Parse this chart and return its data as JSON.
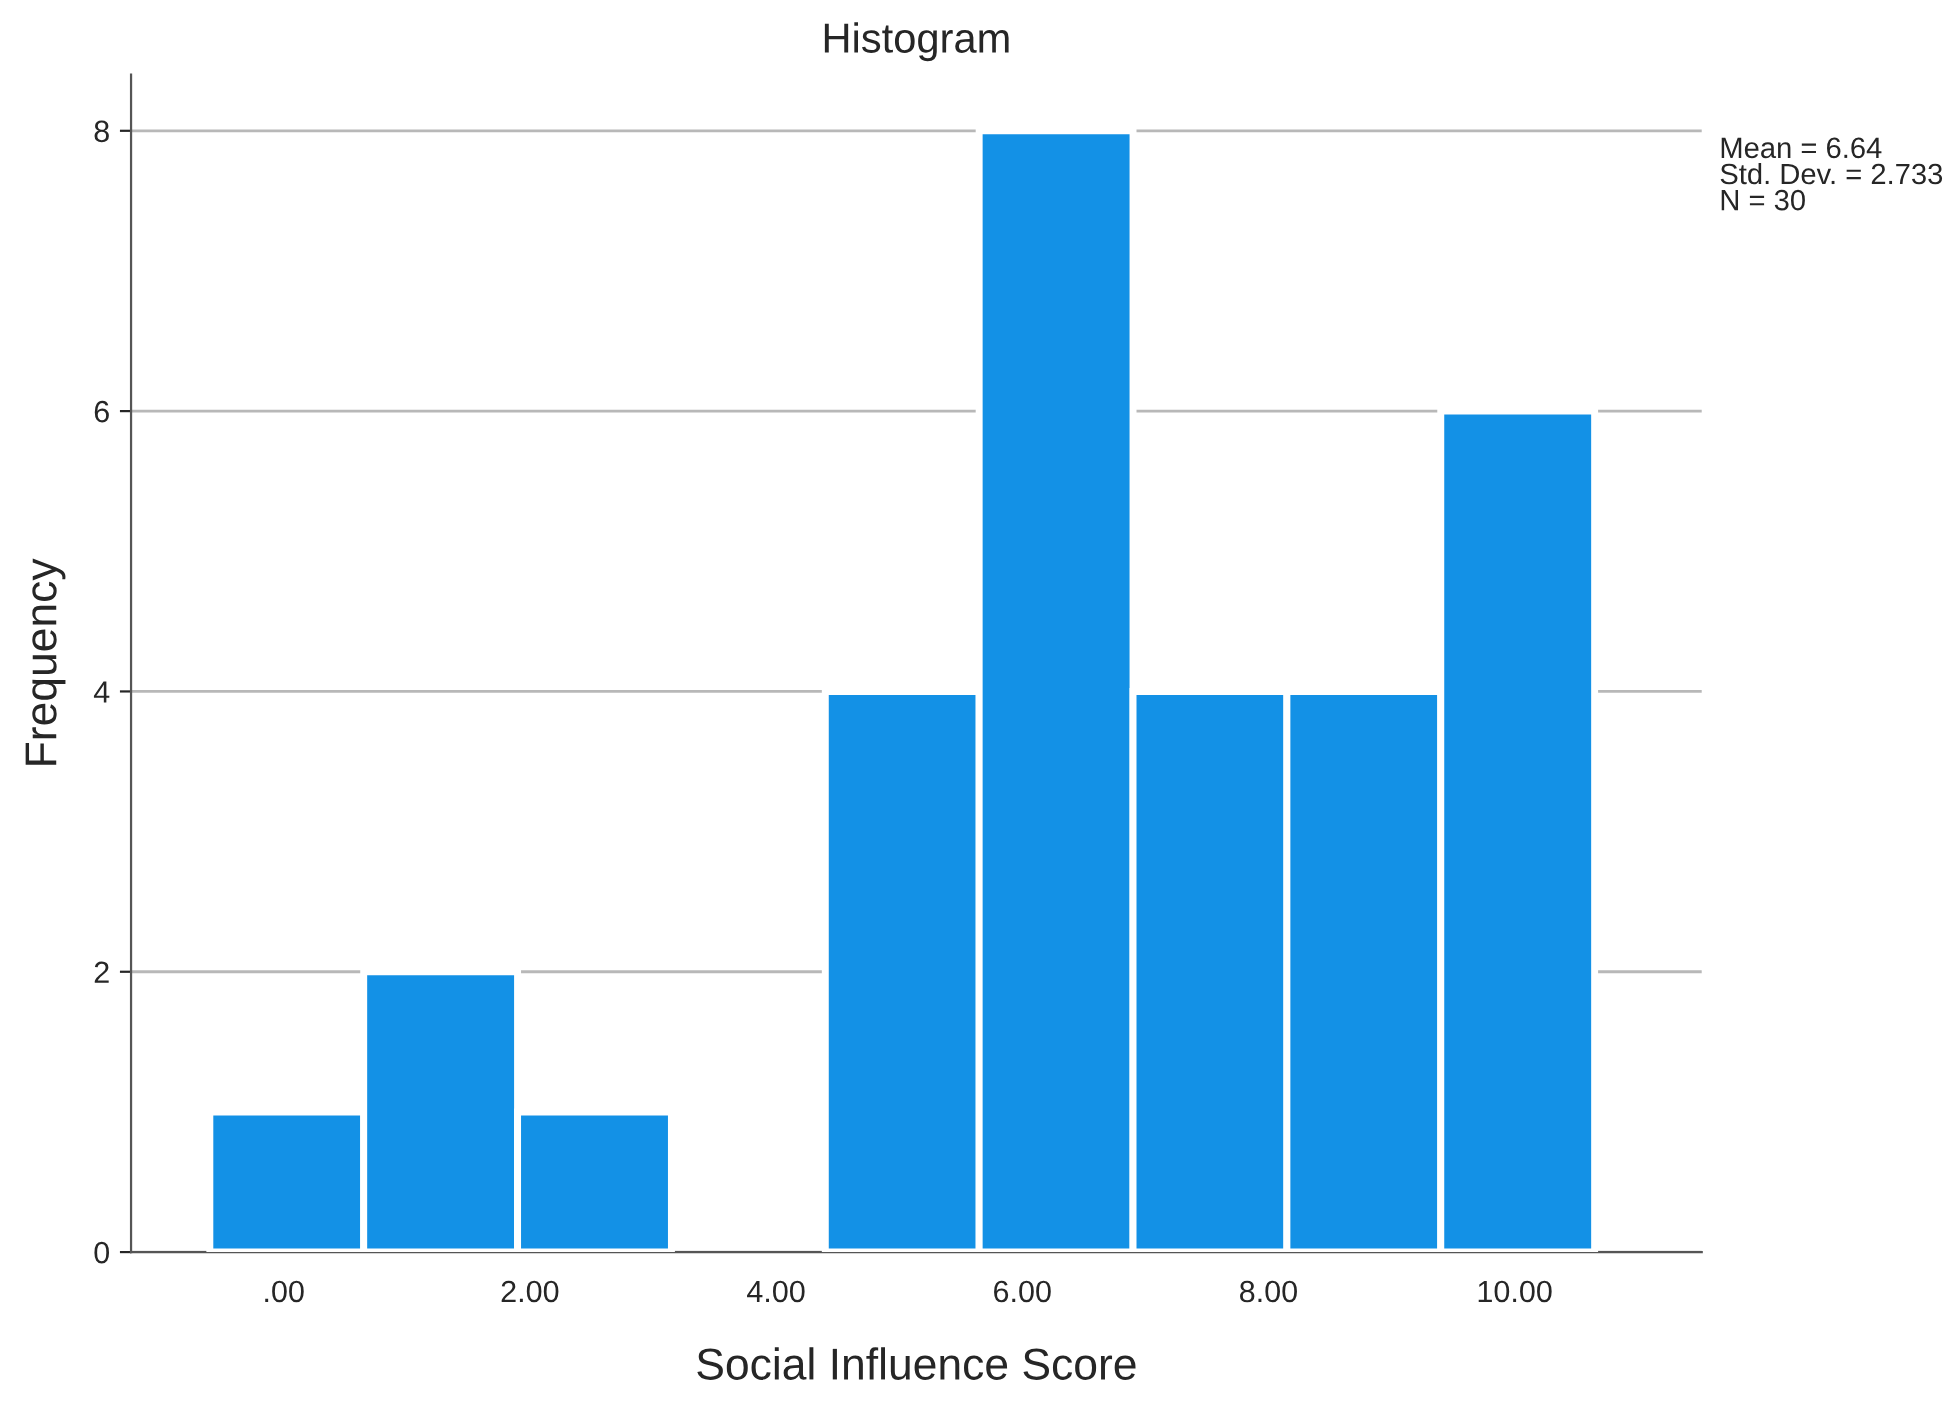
{
  "chart_data": {
    "type": "histogram",
    "title": "Histogram",
    "xlabel": "Social Influence Score",
    "ylabel": "Frequency",
    "bins": [
      -0.6,
      0.65,
      1.9,
      3.15,
      4.4,
      5.65,
      6.9,
      8.15,
      9.4,
      10.65
    ],
    "values": [
      1,
      2,
      1,
      0,
      4,
      8,
      4,
      4,
      6
    ],
    "color": "#1391e6",
    "xlim": [
      -1.24,
      11.52
    ],
    "xticks": [
      {
        "value": 0,
        "label": ".00"
      },
      {
        "value": 2,
        "label": "2.00"
      },
      {
        "value": 4,
        "label": "4.00"
      },
      {
        "value": 6,
        "label": "6.00"
      },
      {
        "value": 8,
        "label": "8.00"
      },
      {
        "value": 10,
        "label": "10.00"
      }
    ],
    "ylim": [
      0,
      8.4
    ],
    "yticks": [
      0,
      2,
      4,
      6,
      8
    ],
    "grid": "y",
    "annotations": [
      "Mean = 6.64\nStd. Dev. = 2.733\nN = 30"
    ]
  }
}
